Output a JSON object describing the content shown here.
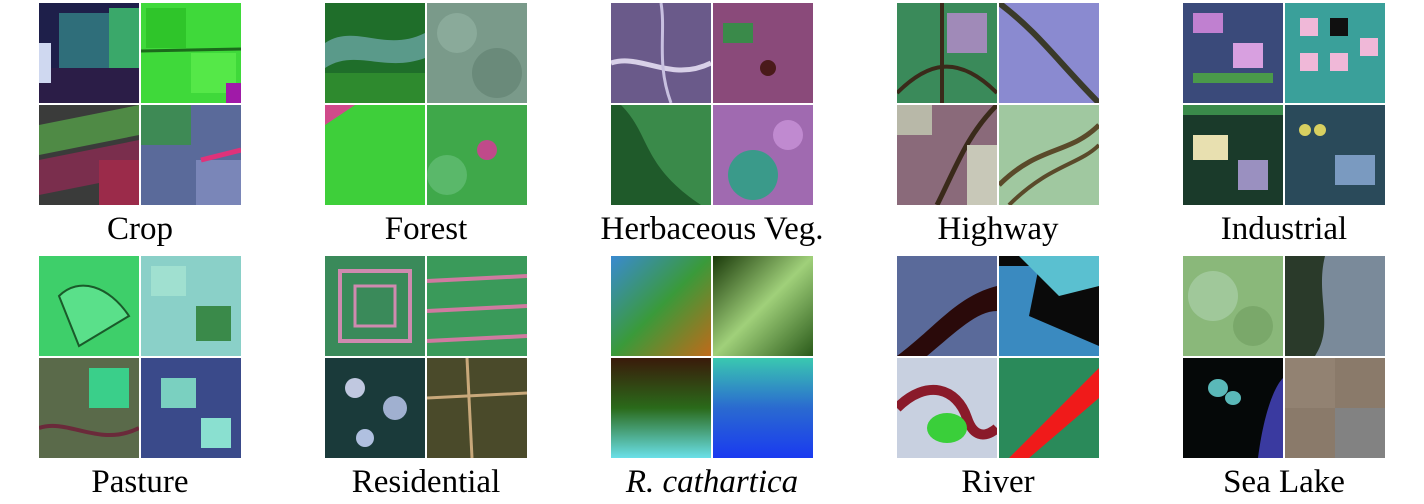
{
  "figure": {
    "classes": [
      {
        "label": "Crop",
        "italic": false
      },
      {
        "label": "Forest",
        "italic": false
      },
      {
        "label": "Herbaceous Veg.",
        "italic": false
      },
      {
        "label": "Highway",
        "italic": false
      },
      {
        "label": "Industrial",
        "italic": false
      },
      {
        "label": "Pasture",
        "italic": false
      },
      {
        "label": "Residential",
        "italic": false
      },
      {
        "label": "R. cathartica",
        "italic": true
      },
      {
        "label": "River",
        "italic": false
      },
      {
        "label": "Sea Lake",
        "italic": false
      }
    ]
  }
}
